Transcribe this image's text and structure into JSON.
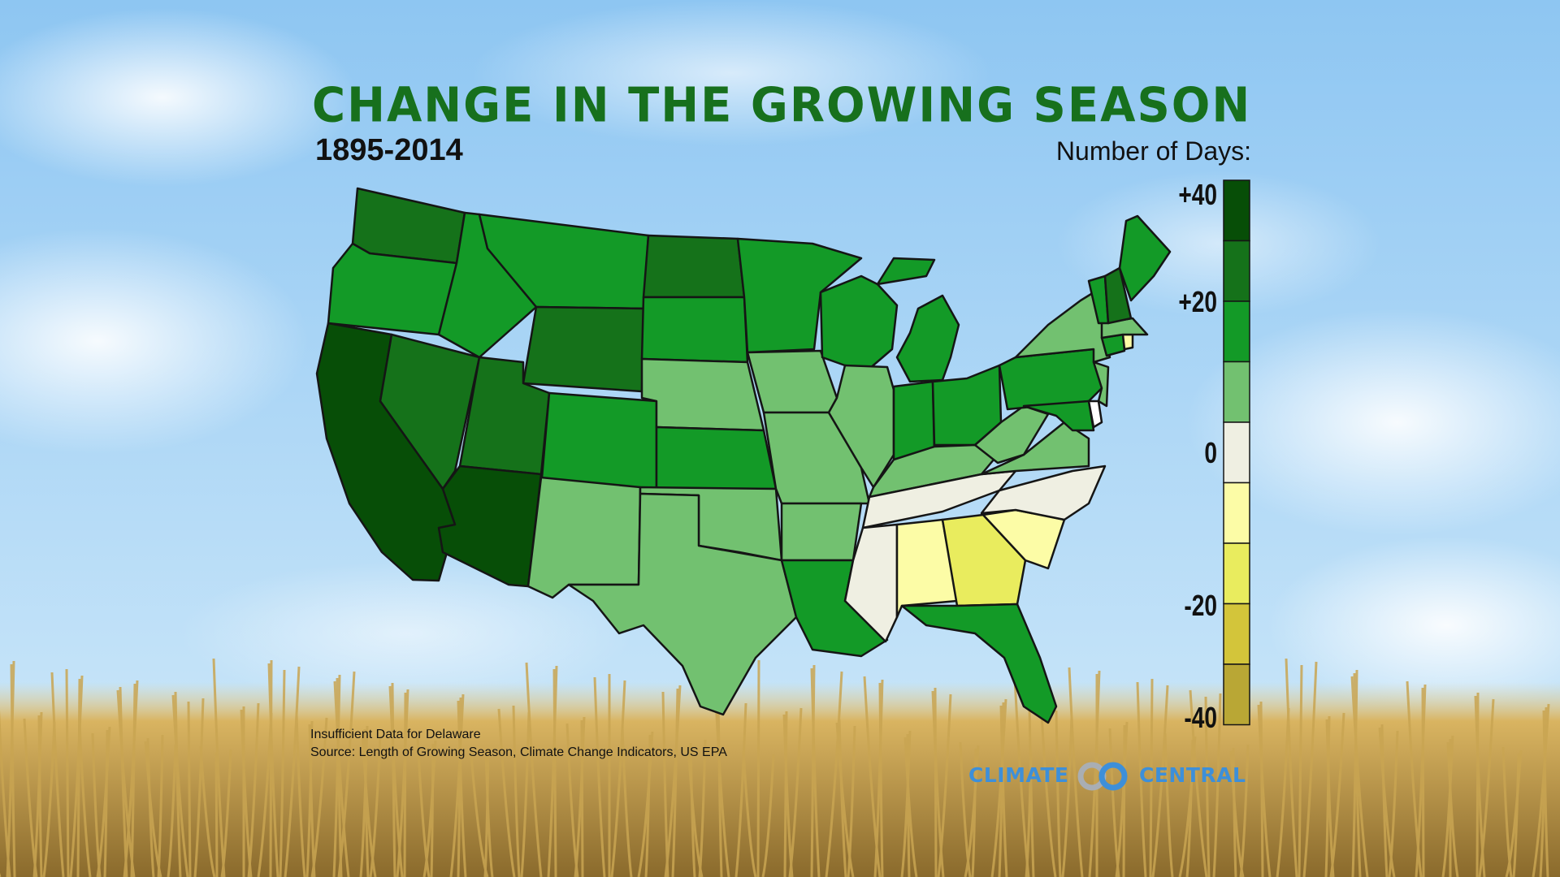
{
  "header": {
    "title": "CHANGE IN THE GROWING SEASON",
    "subtitle": "1895-2014"
  },
  "legend": {
    "title": "Number of Days:",
    "ticks": [
      "+40",
      "+20",
      "0",
      "-20",
      "-40"
    ],
    "bins": [
      {
        "color": "#074e07"
      },
      {
        "color": "#15721a"
      },
      {
        "color": "#139a27"
      },
      {
        "color": "#72c170"
      },
      {
        "color": "#efefe2"
      },
      {
        "color": "#fcfca6"
      },
      {
        "color": "#e9ec5e"
      },
      {
        "color": "#d3c53a"
      },
      {
        "color": "#b9a735"
      }
    ]
  },
  "notes": {
    "insufficient": "Insufficient Data for Delaware",
    "source": "Source: Length of Growing Season, Climate Change Indicators, US EPA"
  },
  "brand": {
    "left": "CLIMATE",
    "right": "CENTRAL"
  },
  "colors": {
    "title_green": "#17701d",
    "brand_blue": "#3d8fd9",
    "sky": "#a8d4f5"
  }
}
